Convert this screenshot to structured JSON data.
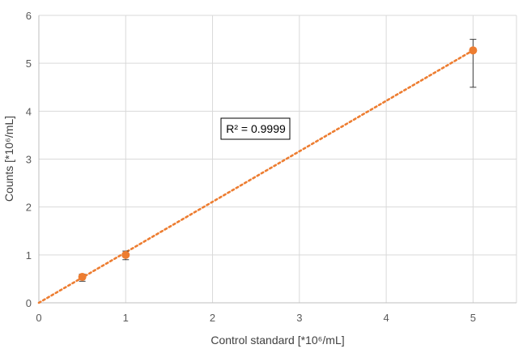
{
  "chart_data": {
    "type": "scatter",
    "xlabel": "Control standard [*10⁶/mL]",
    "ylabel": "Counts [*10⁶/mL]",
    "xlim": [
      0,
      5.5
    ],
    "ylim": [
      0,
      6
    ],
    "x_ticks": [
      0,
      1,
      2,
      3,
      4,
      5
    ],
    "y_ticks": [
      0,
      1,
      2,
      3,
      4,
      5,
      6
    ],
    "grid": true,
    "legend": "none",
    "series": [
      {
        "color": "#ED7D31",
        "points": [
          {
            "x": 0.5,
            "y": 0.54,
            "err_low": 0.45,
            "err_high": 0.6
          },
          {
            "x": 1,
            "y": 1.0,
            "err_low": 0.9,
            "err_high": 1.08
          },
          {
            "x": 5,
            "y": 5.27,
            "err_low": 4.5,
            "err_high": 5.5
          }
        ]
      }
    ],
    "trendline": {
      "type": "linear",
      "style": "dotted",
      "color": "#ED7D31",
      "x_range": [
        0,
        5
      ],
      "slope": 1.054,
      "intercept": 0
    },
    "annotation": "R² = 0.9999"
  }
}
